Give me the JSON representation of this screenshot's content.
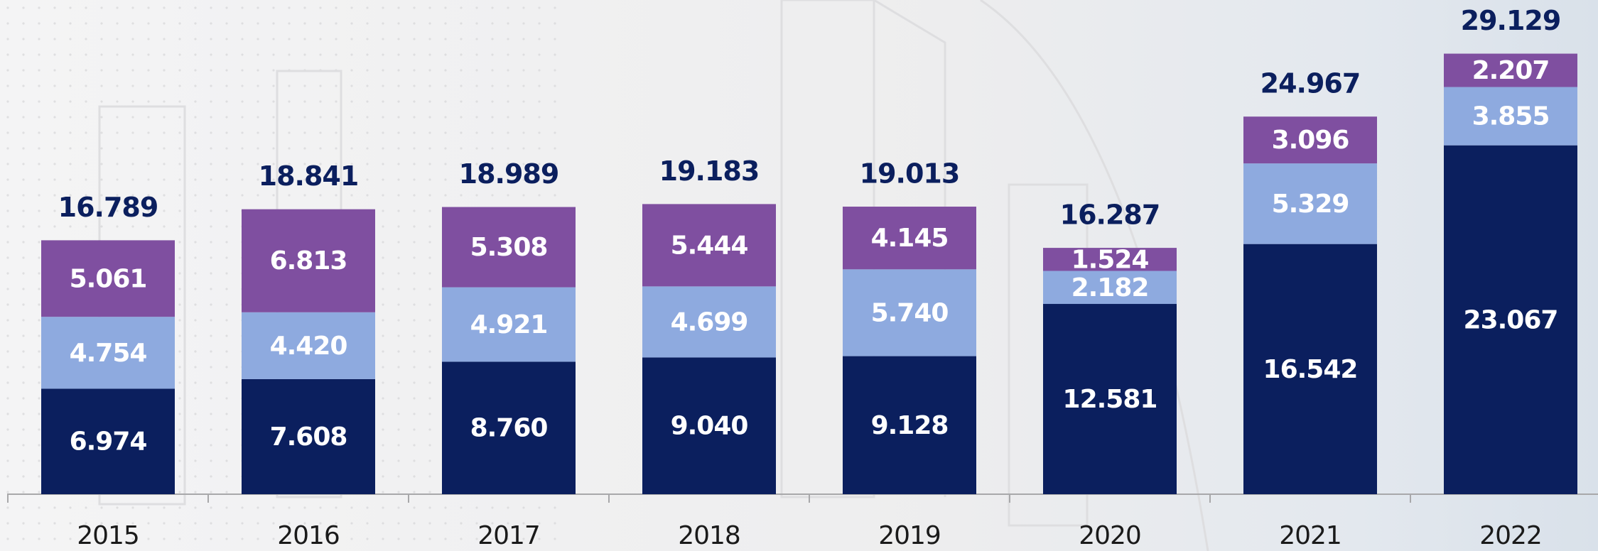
{
  "chart_data": {
    "type": "stacked-bar",
    "categories": [
      "2015",
      "2016",
      "2017",
      "2018",
      "2019",
      "2020",
      "2021",
      "2022"
    ],
    "series": [
      {
        "color": "#0b1f5e",
        "values": [
          6.974,
          7.608,
          8.76,
          9.04,
          9.128,
          12.581,
          16.542,
          23.067
        ],
        "value_labels": [
          "6.974",
          "7.608",
          "8.760",
          "9.040",
          "9.128",
          "12.581",
          "16.542",
          "23.067"
        ]
      },
      {
        "color": "#8eaadf",
        "values": [
          4.754,
          4.42,
          4.921,
          4.699,
          5.74,
          2.182,
          5.329,
          3.855
        ],
        "value_labels": [
          "4.754",
          "4.420",
          "4.921",
          "4.699",
          "5.740",
          "2.182",
          "5.329",
          "3.855"
        ]
      },
      {
        "color": "#7f4fa0",
        "values": [
          5.061,
          6.813,
          5.308,
          5.444,
          4.145,
          1.524,
          3.096,
          2.207
        ],
        "value_labels": [
          "5.061",
          "6.813",
          "5.308",
          "5.444",
          "4.145",
          "1.524",
          "3.096",
          "2.207"
        ]
      }
    ],
    "totals": [
      16.789,
      18.841,
      18.989,
      19.183,
      19.013,
      16.287,
      24.967,
      29.129
    ],
    "total_labels": [
      "16.789",
      "18.841",
      "18.989",
      "19.183",
      "19.013",
      "16.287",
      "24.967",
      "29.129"
    ]
  }
}
